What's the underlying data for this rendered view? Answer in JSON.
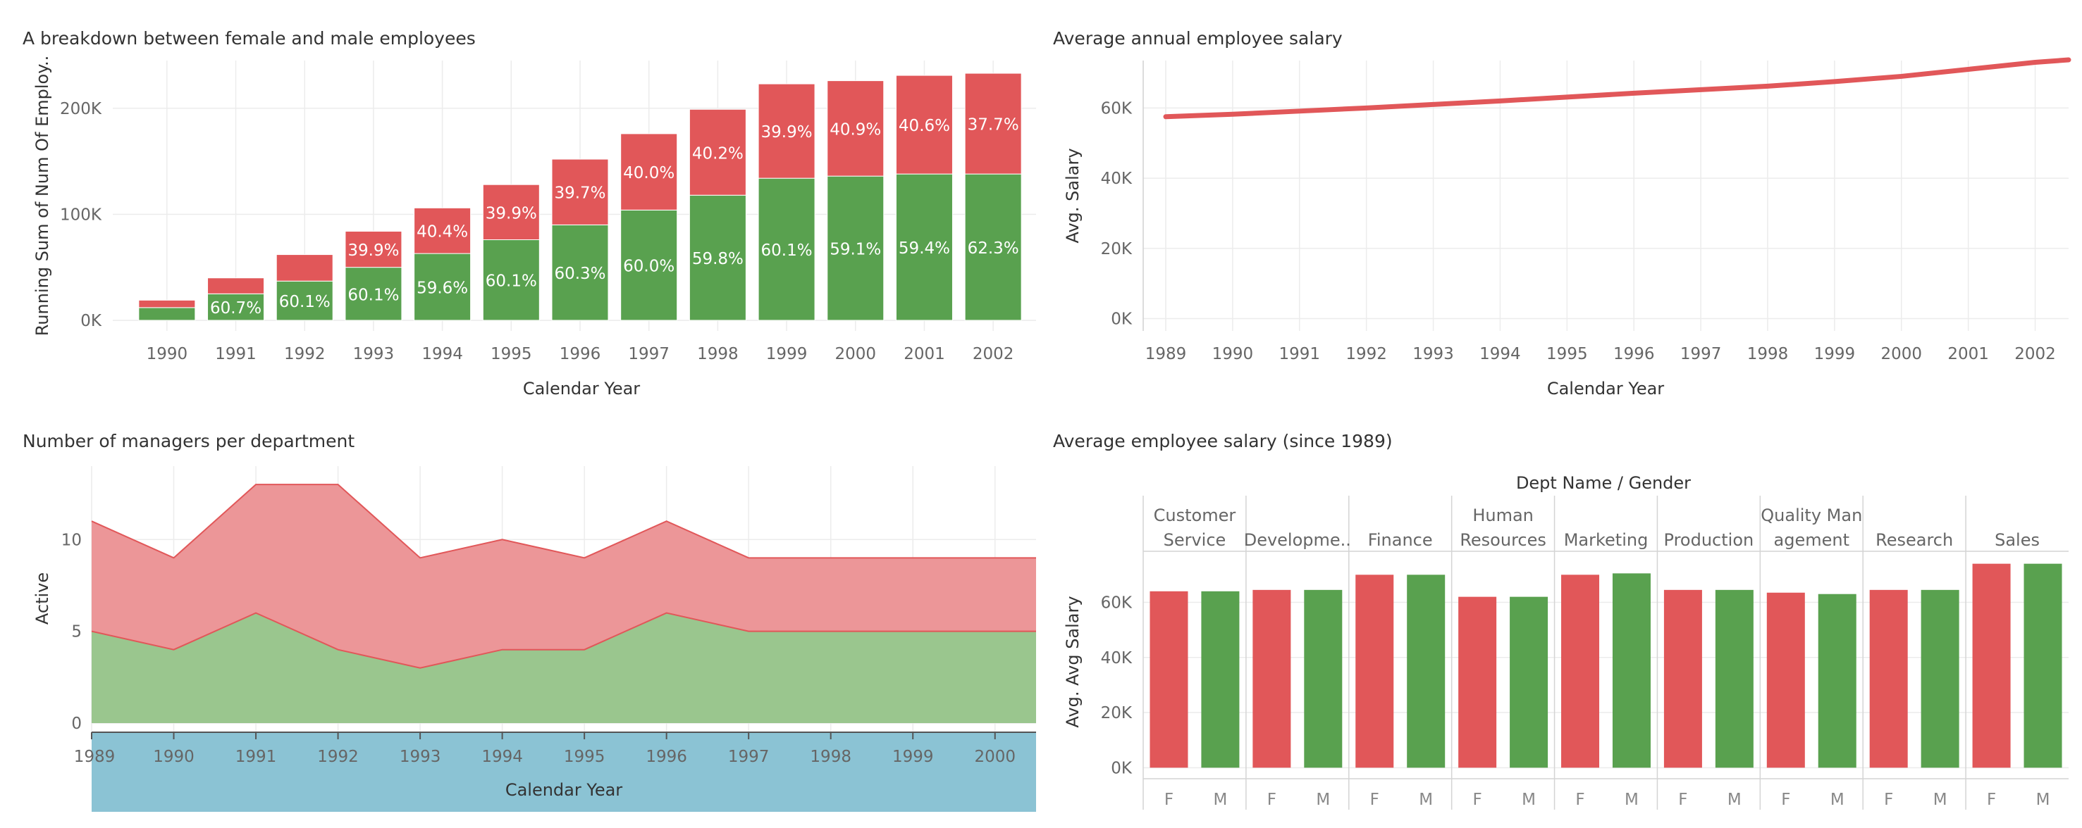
{
  "colors": {
    "female": "#e15759",
    "male": "#59a14f",
    "female_area": "#ec9698",
    "male_area": "#9ac68e",
    "calendar_band": "#8bc3d4",
    "grid": "#ececec"
  },
  "chart_data": [
    {
      "id": "gender",
      "type": "bar",
      "title": "A breakdown between female and male employees",
      "xlabel": "Calendar Year",
      "ylabel": "Running Sum of Num Of Employ..",
      "ylim": [
        -10000,
        245000
      ],
      "yticks": [
        {
          "v": 0,
          "label": "0K"
        },
        {
          "v": 100000,
          "label": "100K"
        },
        {
          "v": 200000,
          "label": "200K"
        }
      ],
      "categories": [
        "1990",
        "1991",
        "1992",
        "1993",
        "1994",
        "1995",
        "1996",
        "1997",
        "1998",
        "1999",
        "2000",
        "2001",
        "2002"
      ],
      "series": [
        {
          "name": "M",
          "values": [
            12000,
            25000,
            37000,
            50000,
            63000,
            76000,
            90000,
            104000,
            118000,
            134000,
            136000,
            138000,
            138000
          ],
          "labels": [
            "",
            "60.7%",
            "60.1%",
            "60.1%",
            "59.6%",
            "60.1%",
            "60.3%",
            "60.0%",
            "59.8%",
            "60.1%",
            "59.1%",
            "59.4%",
            "62.3%"
          ]
        },
        {
          "name": "F",
          "values": [
            7000,
            15000,
            25000,
            34000,
            43000,
            52000,
            62000,
            72000,
            81000,
            89000,
            90000,
            93000,
            95000
          ],
          "labels": [
            "",
            "",
            "",
            "39.9%",
            "40.4%",
            "39.9%",
            "39.7%",
            "40.0%",
            "40.2%",
            "39.9%",
            "40.9%",
            "40.6%",
            "37.7%"
          ]
        }
      ],
      "stacked": true,
      "grid": true
    },
    {
      "id": "salary_line",
      "type": "line",
      "title": "Average annual employee salary",
      "xlabel": "Calendar Year",
      "ylabel": "Avg. Salary",
      "xlim": [
        1989,
        2002.5
      ],
      "ylim": [
        -3500,
        73500
      ],
      "xticks": [
        1989,
        1990,
        1991,
        1992,
        1993,
        1994,
        1995,
        1996,
        1997,
        1998,
        1999,
        2000,
        2001,
        2002
      ],
      "yticks": [
        {
          "v": 0,
          "label": "0K"
        },
        {
          "v": 20000,
          "label": "20K"
        },
        {
          "v": 40000,
          "label": "40K"
        },
        {
          "v": 60000,
          "label": "60K"
        }
      ],
      "series": [
        {
          "x": [
            1989,
            1990,
            1991,
            1992,
            1993,
            1994,
            1995,
            1996,
            1997,
            1998,
            1999,
            2000,
            2001,
            2002,
            2002.5
          ],
          "values": [
            57500,
            58200,
            59100,
            60000,
            61000,
            62000,
            63100,
            64200,
            65200,
            66200,
            67500,
            69000,
            71000,
            73000,
            73700
          ]
        }
      ],
      "grid": true
    },
    {
      "id": "managers",
      "type": "area",
      "title": "Number of managers per department",
      "xlabel": "Calendar Year",
      "ylabel": "Active",
      "xlim": [
        1989,
        2000.5
      ],
      "ylim": [
        -0.5,
        14
      ],
      "xticks": [
        1989,
        1990,
        1991,
        1992,
        1993,
        1994,
        1995,
        1996,
        1997,
        1998,
        1999,
        2000
      ],
      "yticks": [
        {
          "v": 0,
          "label": "0"
        },
        {
          "v": 5,
          "label": "5"
        },
        {
          "v": 10,
          "label": "10"
        }
      ],
      "x": [
        1989,
        1990,
        1991,
        1992,
        1993,
        1994,
        1995,
        1996,
        1997,
        1998,
        1999,
        2000,
        2000.5
      ],
      "series": [
        {
          "name": "M",
          "values": [
            5,
            4,
            6,
            4,
            3,
            4,
            4,
            6,
            5,
            5,
            5,
            5,
            5
          ]
        },
        {
          "name": "F",
          "values": [
            6,
            5,
            7,
            9,
            6,
            6,
            5,
            5,
            4,
            4,
            4,
            4,
            4
          ]
        }
      ],
      "stacked": true,
      "grid": true
    },
    {
      "id": "dept_salary",
      "type": "bar",
      "title": "Average employee salary (since 1989)",
      "header": "Dept Name  /  Gender",
      "ylabel": "Avg. Avg Salary",
      "ylim": [
        -4000,
        78000
      ],
      "yticks": [
        {
          "v": 0,
          "label": "0K"
        },
        {
          "v": 20000,
          "label": "20K"
        },
        {
          "v": 40000,
          "label": "40K"
        },
        {
          "v": 60000,
          "label": "60K"
        }
      ],
      "departments": [
        {
          "name": [
            "Customer",
            "Service"
          ],
          "F": 64000,
          "M": 64000
        },
        {
          "name": [
            "Developme.."
          ],
          "F": 64500,
          "M": 64500
        },
        {
          "name": [
            "Finance"
          ],
          "F": 70000,
          "M": 70000
        },
        {
          "name": [
            "Human",
            "Resources"
          ],
          "F": 62000,
          "M": 62000
        },
        {
          "name": [
            "Marketing"
          ],
          "F": 70000,
          "M": 70500
        },
        {
          "name": [
            "Production"
          ],
          "F": 64500,
          "M": 64500
        },
        {
          "name": [
            "Quality Man",
            "agement"
          ],
          "F": 63500,
          "M": 63000
        },
        {
          "name": [
            "Research"
          ],
          "F": 64500,
          "M": 64500
        },
        {
          "name": [
            "Sales"
          ],
          "F": 74000,
          "M": 74000
        }
      ],
      "gender_labels": [
        "F",
        "M"
      ]
    }
  ]
}
